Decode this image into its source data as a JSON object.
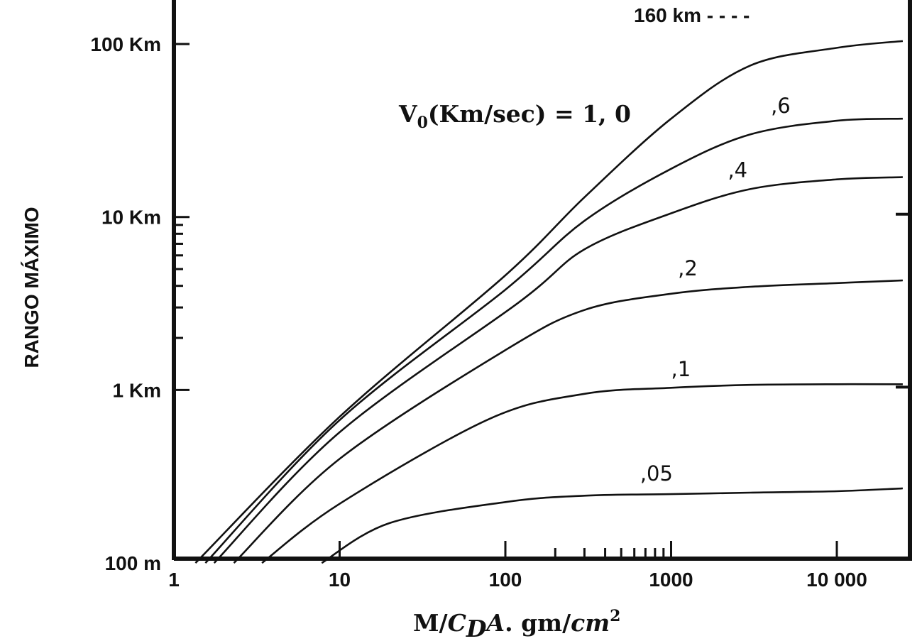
{
  "chart_data": {
    "type": "line",
    "x_scale": "log",
    "y_scale": "log",
    "xlim": [
      1,
      25000
    ],
    "ylim": [
      0.1,
      200
    ],
    "x_ticks": [
      {
        "value": 1,
        "label": "1"
      },
      {
        "value": 10,
        "label": "10"
      },
      {
        "value": 100,
        "label": "100"
      },
      {
        "value": 1000,
        "label": "1000"
      },
      {
        "value": 10000,
        "label": "10 000"
      }
    ],
    "y_ticks": [
      {
        "value": 0.1,
        "label": "100 m"
      },
      {
        "value": 1,
        "label": "1 Km"
      },
      {
        "value": 10,
        "label": "10 Km"
      },
      {
        "value": 100,
        "label": "100 Km"
      }
    ],
    "xlabel": {
      "main": "M/",
      "sym": "C",
      "sub": "D",
      "a": "A",
      "unit": ".  gm/",
      "cm": "cm",
      "sup": "2"
    },
    "ylabel": "RANGO MÁXIMO",
    "param_label": {
      "v": "V",
      "sub": "0",
      "rest": "(Km/sec) = 1, 0"
    },
    "legend_dashed": "160 km - - - -",
    "series": [
      {
        "name": "1, 0",
        "x": [
          1.35,
          10,
          100,
          300,
          1000,
          3000,
          10000,
          25000
        ],
        "y": [
          0.1,
          0.7,
          4.6,
          13,
          37,
          75,
          95,
          104
        ]
      },
      {
        "name": ",6",
        "x": [
          1.55,
          10,
          100,
          300,
          1000,
          3000,
          10000,
          25000
        ],
        "y": [
          0.1,
          0.67,
          3.8,
          9.5,
          19,
          30,
          36,
          37
        ]
      },
      {
        "name": ",4",
        "x": [
          1.75,
          10,
          120,
          300,
          1000,
          3000,
          10000,
          25000
        ],
        "y": [
          0.1,
          0.57,
          3.2,
          6.5,
          10.5,
          14.5,
          16.5,
          17
        ]
      },
      {
        "name": ",2",
        "x": [
          2.3,
          10,
          100,
          300,
          1000,
          3000,
          10000,
          25000
        ],
        "y": [
          0.1,
          0.4,
          1.7,
          2.9,
          3.6,
          3.95,
          4.15,
          4.3
        ]
      },
      {
        "name": ",1",
        "x": [
          3.4,
          10,
          80,
          300,
          1000,
          3000,
          10000,
          25000
        ],
        "y": [
          0.1,
          0.22,
          0.68,
          0.95,
          1.03,
          1.07,
          1.08,
          1.08
        ]
      },
      {
        "name": ",05",
        "x": [
          7.8,
          20,
          100,
          300,
          1000,
          3000,
          10000,
          25000
        ],
        "y": [
          0.1,
          0.17,
          0.225,
          0.245,
          0.25,
          0.255,
          0.26,
          0.27
        ]
      }
    ],
    "curve_labels": [
      {
        "text": ",6",
        "x": 4000,
        "y": 40
      },
      {
        "text": ",4",
        "x": 2200,
        "y": 17
      },
      {
        "text": ",2",
        "x": 1100,
        "y": 4.6
      },
      {
        "text": ",1",
        "x": 1000,
        "y": 1.2
      },
      {
        "text": ",05",
        "x": 650,
        "y": 0.3
      }
    ],
    "grid": false
  }
}
